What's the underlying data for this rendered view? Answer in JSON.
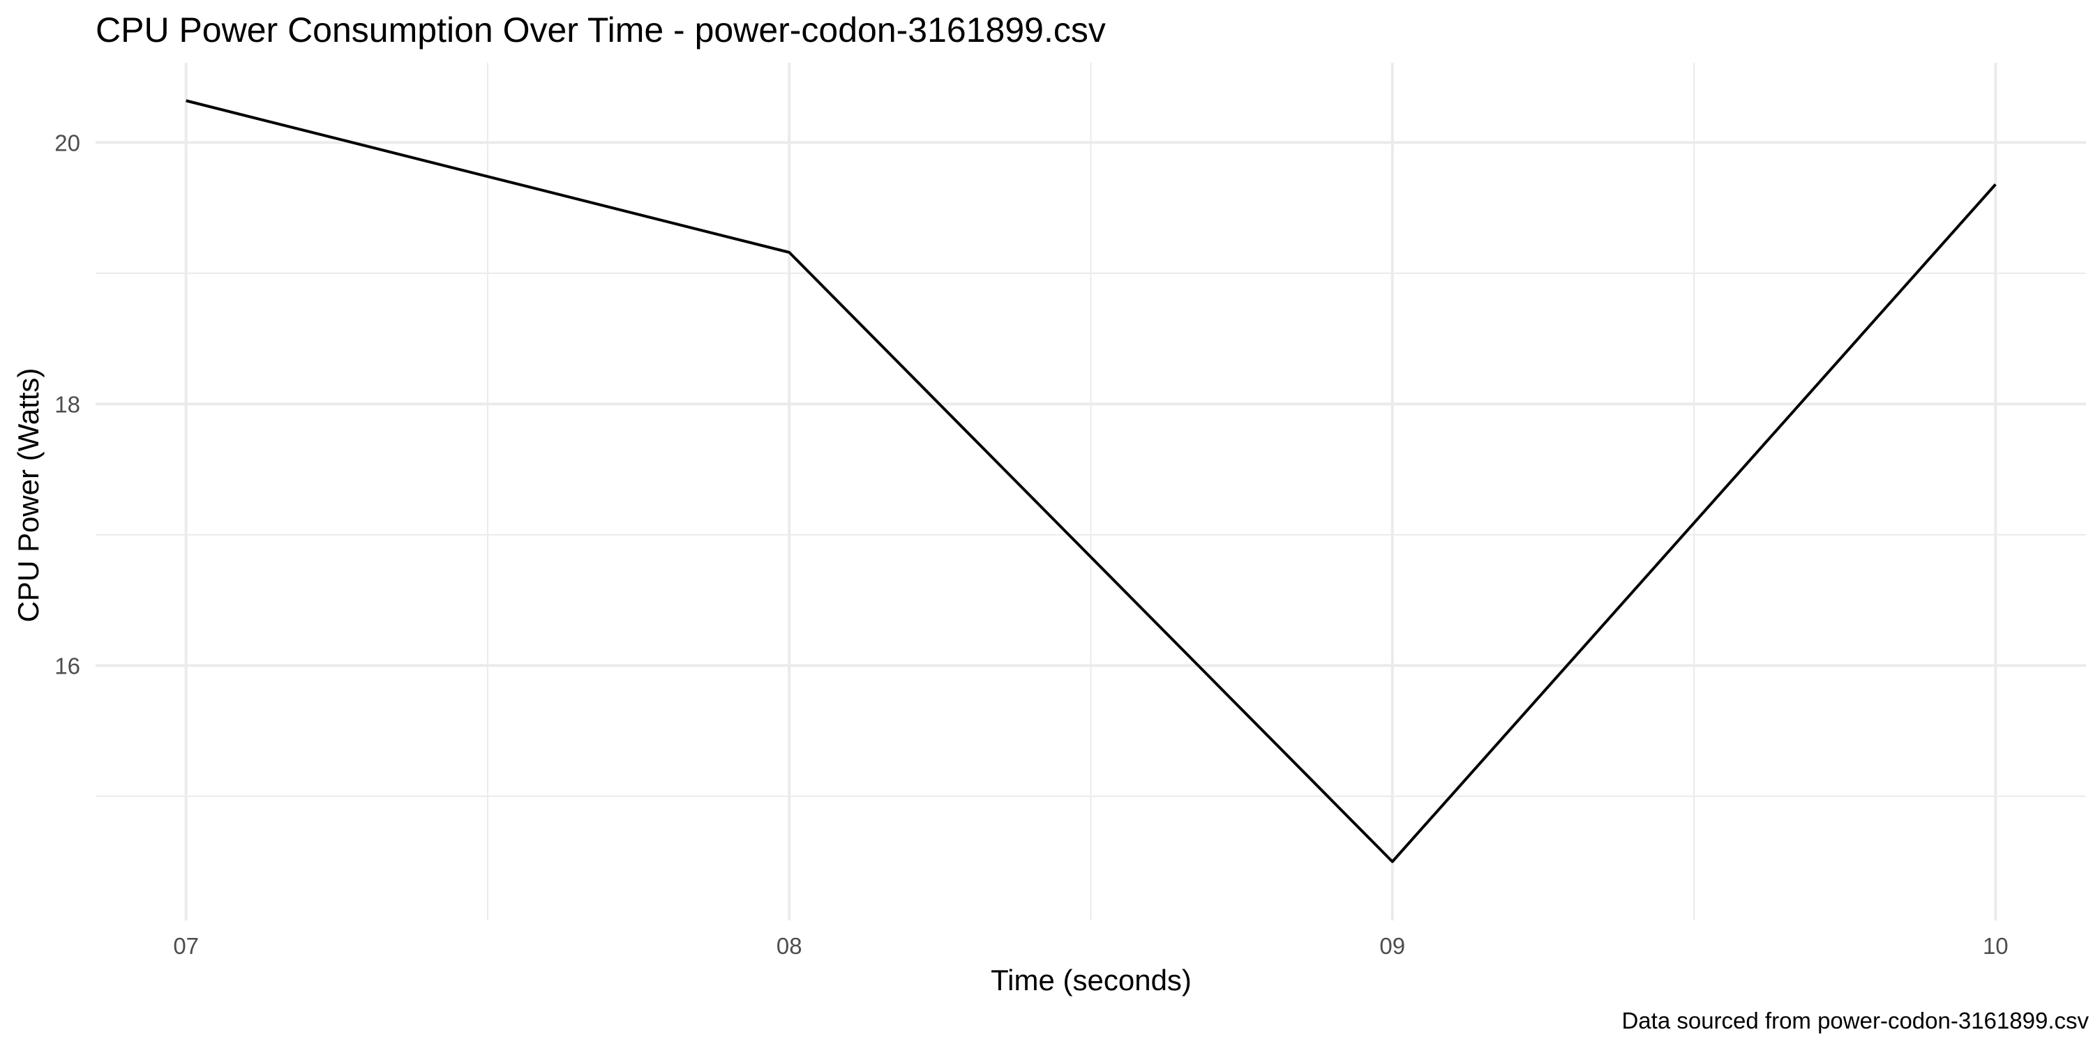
{
  "chart_data": {
    "type": "line",
    "title": "CPU Power Consumption Over Time - power-codon-3161899.csv",
    "xlabel": "Time (seconds)",
    "ylabel": "CPU Power (Watts)",
    "caption": "Data sourced from power-codon-3161899.csv",
    "x": [
      "07",
      "08",
      "09",
      "10"
    ],
    "series": [
      {
        "values": [
          20.32,
          19.16,
          14.5,
          19.68
        ]
      }
    ],
    "x_minor": [
      7.5,
      8.5,
      9.5
    ],
    "y_ticks": [
      16,
      18,
      20
    ],
    "y_tick_labels": [
      "16",
      "18",
      "20"
    ],
    "y_minor": [
      15,
      17,
      19
    ],
    "xlim": [
      6.85,
      10.15
    ],
    "ylim": [
      14.05,
      20.61
    ],
    "grid": true,
    "legend": "none",
    "colors": {
      "line": "#000000",
      "grid": "#ebebeb",
      "tick_text": "#4d4d4d",
      "background": "#ffffff"
    }
  }
}
